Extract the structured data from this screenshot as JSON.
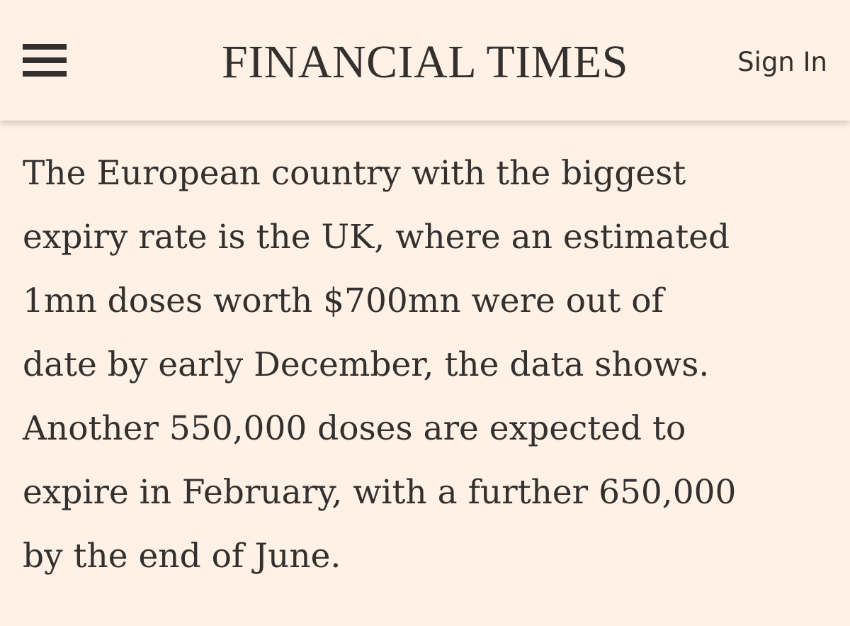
{
  "header": {
    "menu_icon": "hamburger-menu-icon",
    "masthead": "FINANCIAL TIMES",
    "sign_in_label": "Sign In"
  },
  "article": {
    "lines": [
      "The European country with the biggest",
      "expiry rate is the UK, where an estimated",
      "1mn doses worth $700mn were out of",
      "date by early December, the data shows.",
      "Another 550,000 doses are expected to",
      "expire in February, with a further 650,000",
      "by the end of June."
    ]
  },
  "colors": {
    "background": "#fff1e5",
    "text": "#33302e"
  }
}
